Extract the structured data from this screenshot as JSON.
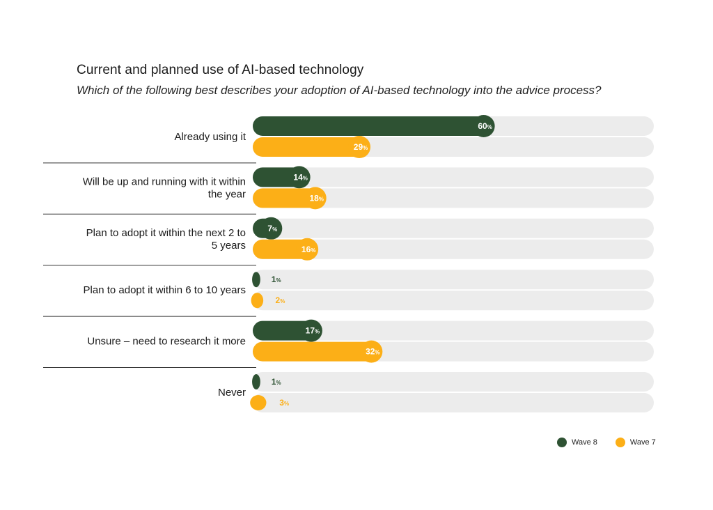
{
  "chart_data": {
    "type": "bar",
    "orientation": "horizontal",
    "title": "Current and planned use of AI-based technology",
    "subtitle": "Which of the following best describes your adoption of AI-based technology into the advice process?",
    "categories": [
      "Already using it",
      "Will be up and running with it within the year",
      "Plan to adopt it within the next 2 to 5 years",
      "Plan to adopt it within 6 to 10 years",
      "Unsure – need to research it more",
      "Never"
    ],
    "series": [
      {
        "name": "Wave 8",
        "color": "#2e5233",
        "values": [
          60,
          14,
          7,
          1,
          17,
          1
        ]
      },
      {
        "name": "Wave 7",
        "color": "#fcaf17",
        "values": [
          29,
          18,
          16,
          2,
          32,
          3
        ]
      }
    ],
    "xlim": [
      0,
      100
    ],
    "value_suffix": "%",
    "legend_position": "bottom-right"
  },
  "colors": {
    "track": "#ececec",
    "divider": "#333333"
  }
}
